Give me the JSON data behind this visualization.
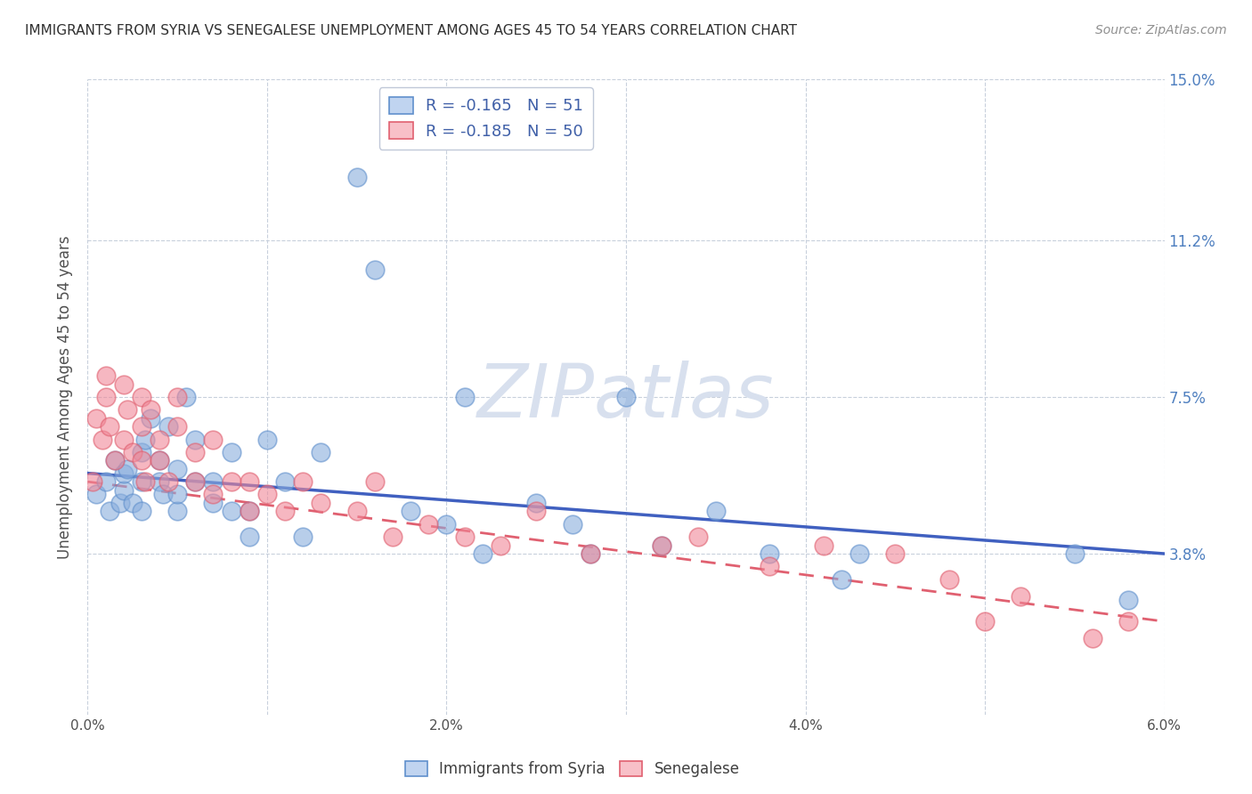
{
  "title": "IMMIGRANTS FROM SYRIA VS SENEGALESE UNEMPLOYMENT AMONG AGES 45 TO 54 YEARS CORRELATION CHART",
  "source": "Source: ZipAtlas.com",
  "ylabel": "Unemployment Among Ages 45 to 54 years",
  "xlim": [
    0.0,
    0.06
  ],
  "ylim": [
    0.0,
    0.15
  ],
  "xtick_vals": [
    0.0,
    0.01,
    0.02,
    0.03,
    0.04,
    0.05,
    0.06
  ],
  "xticklabels": [
    "0.0%",
    "",
    "2.0%",
    "",
    "4.0%",
    "",
    "6.0%"
  ],
  "ytick_values_right": [
    0.038,
    0.075,
    0.112,
    0.15
  ],
  "ytick_labels_right": [
    "3.8%",
    "7.5%",
    "11.2%",
    "15.0%"
  ],
  "legend_label1": "Immigrants from Syria",
  "legend_label2": "Senegalese",
  "r1": -0.165,
  "n1": 51,
  "r2": -0.185,
  "n2": 50,
  "color_blue": "#8AAEDD",
  "color_pink": "#F08898",
  "color_blue_edge": "#6090CC",
  "color_pink_edge": "#E06070",
  "color_blue_line": "#4060C0",
  "color_pink_line": "#E06070",
  "right_label_color": "#5080C0",
  "watermark_color": "#D8E0EE",
  "background_color": "#FFFFFF",
  "blue_scatter_x": [
    0.0005,
    0.001,
    0.0012,
    0.0015,
    0.0018,
    0.002,
    0.002,
    0.0022,
    0.0025,
    0.003,
    0.003,
    0.003,
    0.0032,
    0.0035,
    0.004,
    0.004,
    0.0042,
    0.0045,
    0.005,
    0.005,
    0.005,
    0.0055,
    0.006,
    0.006,
    0.007,
    0.007,
    0.008,
    0.008,
    0.009,
    0.009,
    0.01,
    0.011,
    0.012,
    0.013,
    0.015,
    0.016,
    0.018,
    0.02,
    0.021,
    0.022,
    0.025,
    0.027,
    0.028,
    0.03,
    0.032,
    0.035,
    0.038,
    0.042,
    0.043,
    0.055,
    0.058
  ],
  "blue_scatter_y": [
    0.052,
    0.055,
    0.048,
    0.06,
    0.05,
    0.053,
    0.057,
    0.058,
    0.05,
    0.048,
    0.055,
    0.062,
    0.065,
    0.07,
    0.055,
    0.06,
    0.052,
    0.068,
    0.048,
    0.052,
    0.058,
    0.075,
    0.055,
    0.065,
    0.05,
    0.055,
    0.048,
    0.062,
    0.042,
    0.048,
    0.065,
    0.055,
    0.042,
    0.062,
    0.127,
    0.105,
    0.048,
    0.045,
    0.075,
    0.038,
    0.05,
    0.045,
    0.038,
    0.075,
    0.04,
    0.048,
    0.038,
    0.032,
    0.038,
    0.038,
    0.027
  ],
  "pink_scatter_x": [
    0.0003,
    0.0005,
    0.0008,
    0.001,
    0.001,
    0.0012,
    0.0015,
    0.002,
    0.002,
    0.0022,
    0.0025,
    0.003,
    0.003,
    0.003,
    0.0032,
    0.0035,
    0.004,
    0.004,
    0.0045,
    0.005,
    0.005,
    0.006,
    0.006,
    0.007,
    0.007,
    0.008,
    0.009,
    0.009,
    0.01,
    0.011,
    0.012,
    0.013,
    0.015,
    0.016,
    0.017,
    0.019,
    0.021,
    0.023,
    0.025,
    0.028,
    0.032,
    0.034,
    0.038,
    0.041,
    0.045,
    0.048,
    0.05,
    0.052,
    0.056,
    0.058
  ],
  "pink_scatter_y": [
    0.055,
    0.07,
    0.065,
    0.075,
    0.08,
    0.068,
    0.06,
    0.065,
    0.078,
    0.072,
    0.062,
    0.06,
    0.068,
    0.075,
    0.055,
    0.072,
    0.06,
    0.065,
    0.055,
    0.068,
    0.075,
    0.055,
    0.062,
    0.052,
    0.065,
    0.055,
    0.048,
    0.055,
    0.052,
    0.048,
    0.055,
    0.05,
    0.048,
    0.055,
    0.042,
    0.045,
    0.042,
    0.04,
    0.048,
    0.038,
    0.04,
    0.042,
    0.035,
    0.04,
    0.038,
    0.032,
    0.022,
    0.028,
    0.018,
    0.022
  ],
  "blue_line_x": [
    0.0,
    0.06
  ],
  "blue_line_y": [
    0.057,
    0.038
  ],
  "pink_line_x": [
    0.0,
    0.06
  ],
  "pink_line_y": [
    0.055,
    0.022
  ]
}
